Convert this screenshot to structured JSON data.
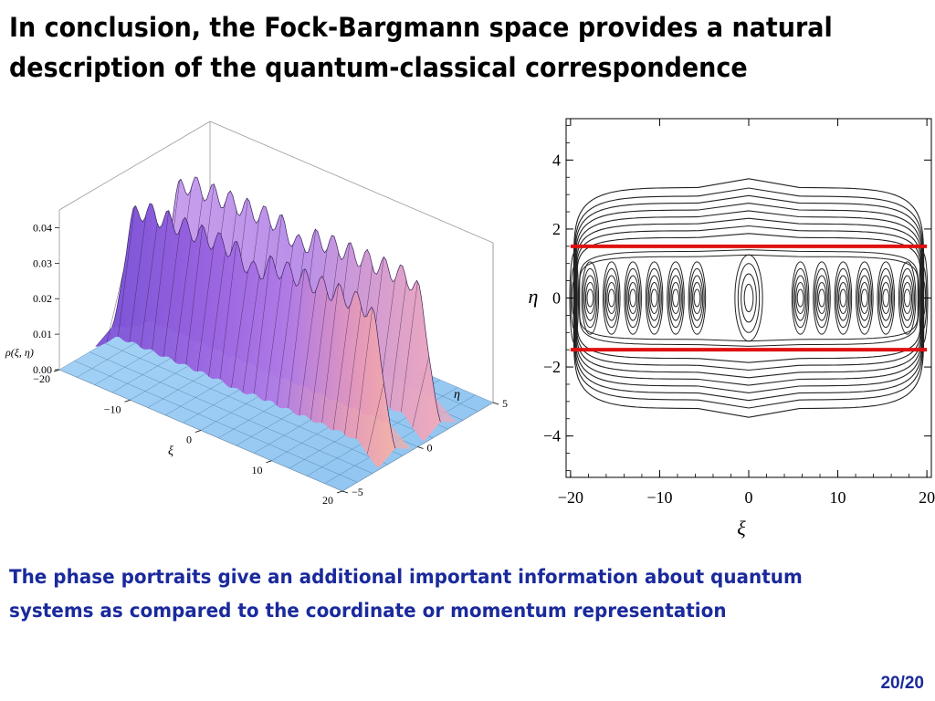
{
  "slide": {
    "title_lines": [
      "In conclusion, the Fock-Bargmann space provides a natural",
      "description of the quantum-classical correspondence"
    ],
    "subtitle_lines": [
      "The phase portraits give an additional important information about quantum",
      "systems as compared to the coordinate or momentum representation"
    ],
    "page_number": "20/20"
  },
  "colors": {
    "title": "#000000",
    "subtitle": "#1a2a9c",
    "surface_floor": "#8fc7f2",
    "surface_ridge": "#9a62df",
    "surface_highlight": "#f2a6b4",
    "separatrix": "#e01010",
    "contour": "#222222"
  },
  "chart_data": [
    {
      "type": "surface",
      "title": "",
      "xlabel": "ξ",
      "ylabel": "η",
      "zlabel": "ρ(ξ, η)",
      "x_ticks": [
        "−20",
        "−10",
        "0",
        "10",
        "20"
      ],
      "y_ticks": [
        "−5",
        "0",
        "5"
      ],
      "z_ticks": [
        "0.04",
        "0.03",
        "0.02",
        "0.01",
        "0.00"
      ],
      "xlim": [
        -20,
        20
      ],
      "ylim": [
        -5,
        5
      ],
      "zlim": [
        0,
        0.045
      ],
      "ridges": [
        {
          "eta": 1.5,
          "height": 0.04
        },
        {
          "eta": -1.5,
          "height": 0.04
        }
      ]
    },
    {
      "type": "contour",
      "title": "",
      "xlabel": "ξ",
      "ylabel": "η",
      "x_ticks": [
        "−20",
        "−10",
        "0",
        "10",
        "20"
      ],
      "y_ticks": [
        "4",
        "2",
        "0",
        "−2",
        "−4"
      ],
      "xlim": [
        -20.5,
        20.5
      ],
      "ylim": [
        -5.2,
        5.2
      ],
      "separatrix_lines": [
        {
          "eta": 1.5,
          "xi_range": [
            -20,
            20
          ]
        },
        {
          "eta": -1.5,
          "xi_range": [
            -20,
            20
          ]
        }
      ]
    }
  ]
}
